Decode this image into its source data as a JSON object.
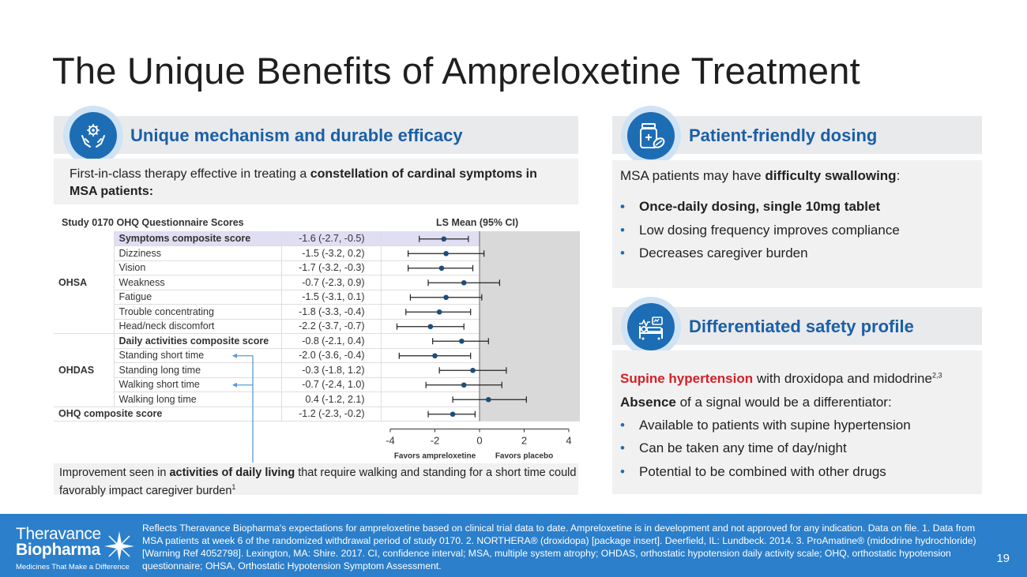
{
  "title": "The Unique Benefits of Ampreloxetine Treatment",
  "left": {
    "banner": "Unique mechanism and durable efficacy",
    "intro_plain": "First-in-class therapy effective in treating a ",
    "intro_bold": "constellation of cardinal symptoms in MSA patients:",
    "study_label": "Study 0170 OHQ Questionnaire Scores",
    "ls_label": "LS Mean (95% CI)",
    "groups": {
      "ohsa": "OHSA",
      "ohdas": "OHDAS",
      "ohq": "OHQ composite score"
    },
    "rows": [
      {
        "label": "Symptoms composite score",
        "value": "-1.6 (-2.7, -0.5)"
      },
      {
        "label": "Dizziness",
        "value": "-1.5 (-3.2, 0.2)"
      },
      {
        "label": "Vision",
        "value": "-1.7 (-3.2, -0.3)"
      },
      {
        "label": "Weakness",
        "value": "-0.7 (-2.3, 0.9)"
      },
      {
        "label": "Fatigue",
        "value": "-1.5 (-3.1, 0.1)"
      },
      {
        "label": "Trouble concentrating",
        "value": "-1.8 (-3.3, -0.4)"
      },
      {
        "label": "Head/neck discomfort",
        "value": "-2.2 (-3.7, -0.7)"
      },
      {
        "label": "Daily activities composite score",
        "value": "-0.8 (-2.1, 0.4)"
      },
      {
        "label": "Standing short time",
        "value": "-2.0 (-3.6, -0.4)"
      },
      {
        "label": "Standing long time",
        "value": "-0.3 (-1.8, 1.2)"
      },
      {
        "label": "Walking short time",
        "value": "-0.7 (-2.4, 1.0)"
      },
      {
        "label": "Walking long time",
        "value": "0.4 (-1.2, 2.1)"
      },
      {
        "label": "OHQ composite score",
        "value": "-1.2 (-2.3, -0.2)"
      }
    ],
    "favors_left": "Favors ampreloxetine",
    "favors_right": "Favors placebo",
    "footnote_plain1": "Improvement seen in ",
    "footnote_bold": "activities of daily living",
    "footnote_plain2": " that require walking and standing for a short time could favorably impact caregiver burden",
    "footnote_sup": "1"
  },
  "chart_data": {
    "type": "forest",
    "title": "Study 0170 OHQ Questionnaire Scores",
    "ylabel": "LS Mean (95% CI)",
    "xlim": [
      -4,
      4
    ],
    "xticks": [
      "-4",
      "-2",
      "0",
      "2",
      "4"
    ],
    "shaded_region": "x > 0",
    "points": [
      {
        "category": "Symptoms composite score",
        "mean": -1.6,
        "lo": -2.7,
        "hi": -0.5
      },
      {
        "category": "Dizziness",
        "mean": -1.5,
        "lo": -3.2,
        "hi": 0.2
      },
      {
        "category": "Vision",
        "mean": -1.7,
        "lo": -3.2,
        "hi": -0.3
      },
      {
        "category": "Weakness",
        "mean": -0.7,
        "lo": -2.3,
        "hi": 0.9
      },
      {
        "category": "Fatigue",
        "mean": -1.5,
        "lo": -3.1,
        "hi": 0.1
      },
      {
        "category": "Trouble concentrating",
        "mean": -1.8,
        "lo": -3.3,
        "hi": -0.4
      },
      {
        "category": "Head/neck discomfort",
        "mean": -2.2,
        "lo": -3.7,
        "hi": -0.7
      },
      {
        "category": "Daily activities composite score",
        "mean": -0.8,
        "lo": -2.1,
        "hi": 0.4
      },
      {
        "category": "Standing short time",
        "mean": -2.0,
        "lo": -3.6,
        "hi": -0.4
      },
      {
        "category": "Standing long time",
        "mean": -0.3,
        "lo": -1.8,
        "hi": 1.2
      },
      {
        "category": "Walking short time",
        "mean": -0.7,
        "lo": -2.4,
        "hi": 1.0
      },
      {
        "category": "Walking long time",
        "mean": 0.4,
        "lo": -1.2,
        "hi": 2.1
      },
      {
        "category": "OHQ composite score",
        "mean": -1.2,
        "lo": -2.3,
        "hi": -0.2
      }
    ],
    "colors": {
      "point": "#1d4e7a",
      "shade": "#d9d9d9",
      "highlight": "#e0def2"
    }
  },
  "right": {
    "dosing_banner": "Patient-friendly dosing",
    "dosing_intro_plain": "MSA patients may have ",
    "dosing_intro_bold": "difficulty swallowing",
    "dosing_intro_end": ":",
    "dosing_bullets": [
      "Once-daily dosing, single 10mg tablet",
      "Low dosing frequency improves compliance",
      "Decreases caregiver burden"
    ],
    "safety_banner": "Differentiated safety profile",
    "supine_red": "Supine hypertension",
    "supine_plain": " with droxidopa and midodrine",
    "supine_sup": "2,3",
    "absence_bold": "Absence",
    "absence_plain": " of a signal would be a differentiator:",
    "safety_bullets": [
      "Available to patients with supine hypertension",
      "Can be taken any time of day/night",
      "Potential to be combined with other drugs"
    ]
  },
  "footer": {
    "logo_line1": "Theravance",
    "logo_line2": "Biopharma",
    "logo_tagline": "Medicines That Make a Difference",
    "disclaimer": "Reflects Theravance Biopharma's expectations for ampreloxetine based on clinical trial data to date. Ampreloxetine is in development and not approved for any indication. Data on file. 1. Data from MSA patients at week 6 of the randomized withdrawal period of study 0170.  2. NORTHERA® (droxidopa) [package insert]. Deerfield, IL: Lundbeck. 2014. 3. ProAmatine® (midodrine hydrochloride) [Warning Ref 4052798]. Lexington, MA: Shire. 2017.  CI, confidence interval; MSA, multiple system atrophy; OHDAS, orthostatic hypotension daily activity scale; OHQ, orthostatic hypotension questionnaire; OHSA, Orthostatic Hypotension Symptom Assessment.",
    "page_number": "19"
  },
  "colors": {
    "accent": "#1b5fa6",
    "footer_bg": "#2b7fcb",
    "banner_bg": "#e9eaec",
    "red": "#d42027"
  }
}
